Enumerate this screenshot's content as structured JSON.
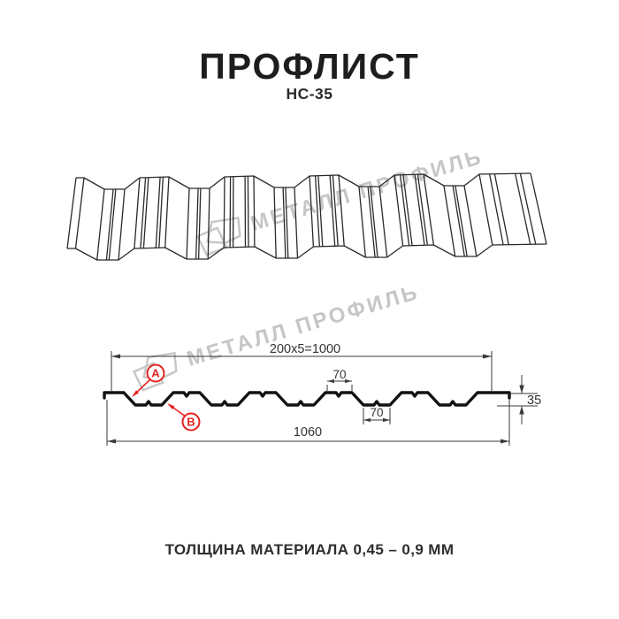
{
  "header": {
    "title": "ПРОФЛИСТ",
    "subtitle": "НС-35"
  },
  "footer": {
    "thickness_note": "ТОЛЩИНА МАТЕРИАЛА 0,45 – 0,9 ММ"
  },
  "watermark": {
    "brand": "МЕТАЛЛ ПРОФИЛЬ",
    "color": "#c6c6c6",
    "logo_icon": "metal-profil-logo-icon"
  },
  "drawing": {
    "dims": {
      "modules_width": "200x5=1000",
      "total_width": "1060",
      "crest_width": "70",
      "trough_width": "70",
      "profile_height": "35"
    },
    "markers": {
      "a": "А",
      "b": "В"
    },
    "colors": {
      "profile_line": "#111111",
      "dim_line": "#3a3a3a",
      "marker_red": "#e42320"
    }
  }
}
